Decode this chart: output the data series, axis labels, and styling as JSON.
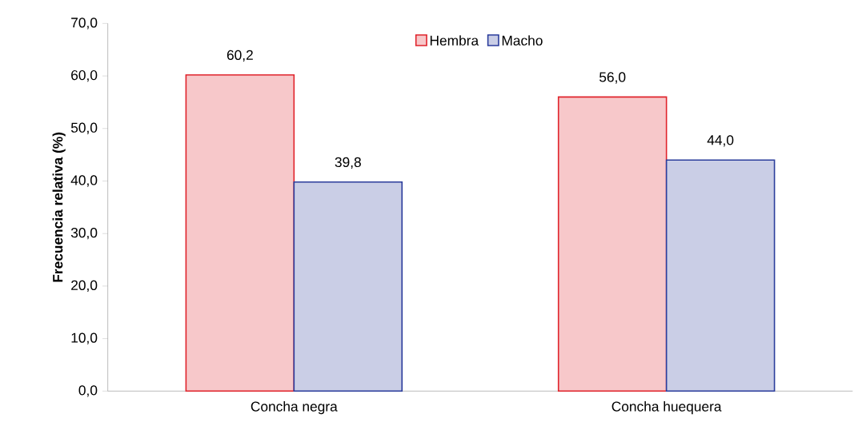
{
  "chart_data": {
    "type": "bar",
    "ylabel": "Frecuencia relativa (%)",
    "categories": [
      "Concha negra",
      "Concha huequera"
    ],
    "series": [
      {
        "name": "Hembra",
        "color": "#e0242c",
        "values": [
          60.2,
          56.0
        ],
        "value_labels": [
          "60,2",
          "56,0"
        ]
      },
      {
        "name": "Macho",
        "color": "#2b3d9c",
        "values": [
          39.8,
          44.0
        ],
        "value_labels": [
          "39,8",
          "44,0"
        ]
      }
    ],
    "ylim": [
      0,
      70
    ],
    "yticks": [
      {
        "value": 0,
        "label": "0,0"
      },
      {
        "value": 10,
        "label": "10,0"
      },
      {
        "value": 20,
        "label": "20,0"
      },
      {
        "value": 30,
        "label": "30,0"
      },
      {
        "value": 40,
        "label": "40,0"
      },
      {
        "value": 50,
        "label": "50,0"
      },
      {
        "value": 60,
        "label": "60,0"
      },
      {
        "value": 70,
        "label": "70,0"
      }
    ],
    "grid": false,
    "legend": "top"
  }
}
